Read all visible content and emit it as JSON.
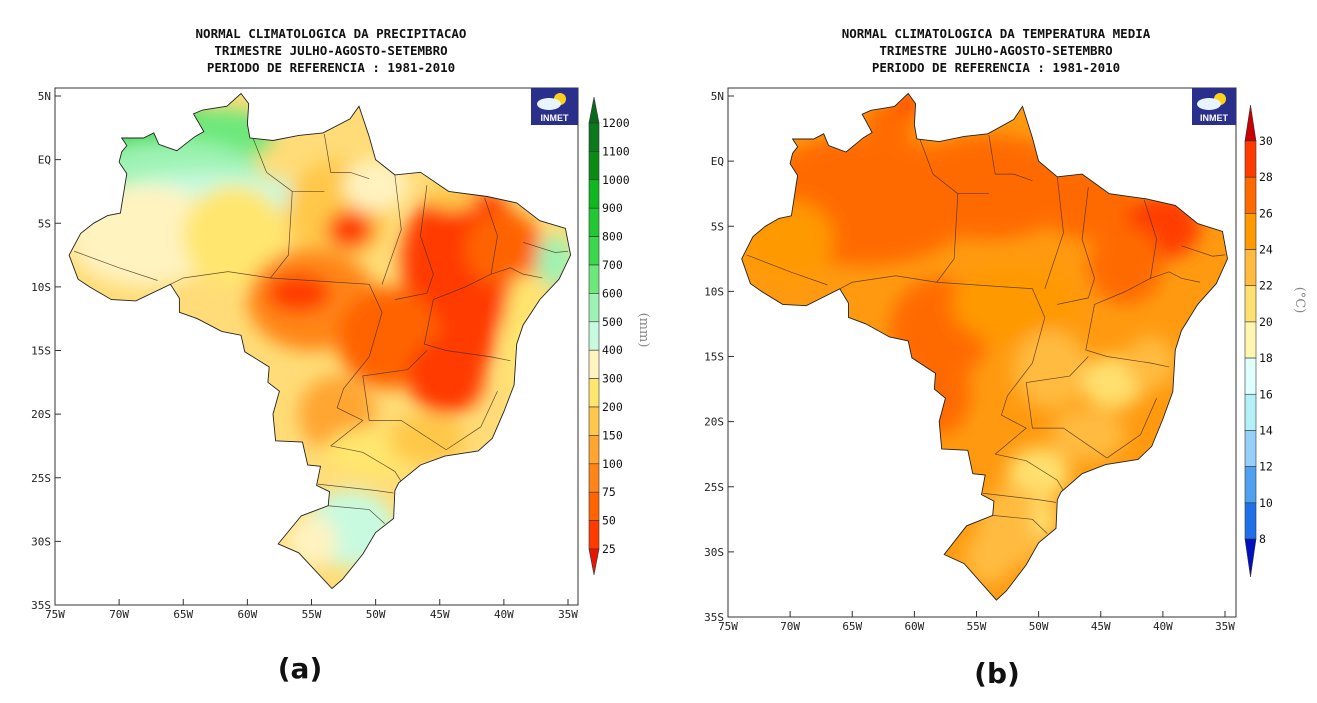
{
  "panels": [
    {
      "id": "a",
      "caption": "(a)",
      "title_lines": [
        "NORMAL CLIMATOLOGICA DA PRECIPITACAO",
        "TRIMESTRE JULHO-AGOSTO-SETEMBRO",
        "PERIODO DE REFERENCIA : 1981-2010"
      ],
      "lat_ticks": [
        "5N",
        "EQ",
        "5S",
        "10S",
        "15S",
        "20S",
        "25S",
        "30S",
        "35S"
      ],
      "lon_ticks": [
        "75W",
        "70W",
        "65W",
        "60W",
        "55W",
        "50W",
        "45W",
        "40W",
        "35W"
      ],
      "logo_text": "INMET",
      "colorbar": {
        "unit": "(mm)",
        "labels": [
          "1200",
          "1100",
          "1000",
          "900",
          "800",
          "700",
          "600",
          "500",
          "400",
          "300",
          "200",
          "150",
          "100",
          "75",
          "50",
          "25"
        ],
        "colors": [
          "#0b7a1a",
          "#0a8c14",
          "#10b820",
          "#22c832",
          "#3ad84a",
          "#6de87a",
          "#9ef3b4",
          "#c8fae0",
          "#fff3c0",
          "#ffe66e",
          "#ffc84a",
          "#ffa530",
          "#ff8518",
          "#ff6400",
          "#ff3a00"
        ],
        "top_color": "#0a6a1c",
        "bottom_color": "#e81800"
      }
    },
    {
      "id": "b",
      "caption": "(b)",
      "title_lines": [
        "NORMAL CLIMATOLOGICA DA TEMPERATURA MEDIA",
        "TRIMESTRE JULHO-AGOSTO-SETEMBRO",
        "PERIODO DE REFERENCIA : 1981-2010"
      ],
      "lat_ticks": [
        "5N",
        "EQ",
        "5S",
        "10S",
        "15S",
        "20S",
        "25S",
        "30S",
        "35S"
      ],
      "lon_ticks": [
        "75W",
        "70W",
        "65W",
        "60W",
        "55W",
        "50W",
        "45W",
        "40W",
        "35W"
      ],
      "logo_text": "INMET",
      "colorbar": {
        "unit": "(°C)",
        "labels": [
          "30",
          "28",
          "26",
          "24",
          "22",
          "20",
          "18",
          "16",
          "14",
          "12",
          "10",
          "8"
        ],
        "colors": [
          "#ff3c00",
          "#ff6a00",
          "#ff9900",
          "#ffbb40",
          "#ffe070",
          "#fff6b0",
          "#e0ffff",
          "#b4f0f8",
          "#96d0f8",
          "#50a0f0",
          "#2070e8"
        ],
        "top_color": "#c80000",
        "bottom_color": "#0010c0"
      }
    }
  ]
}
